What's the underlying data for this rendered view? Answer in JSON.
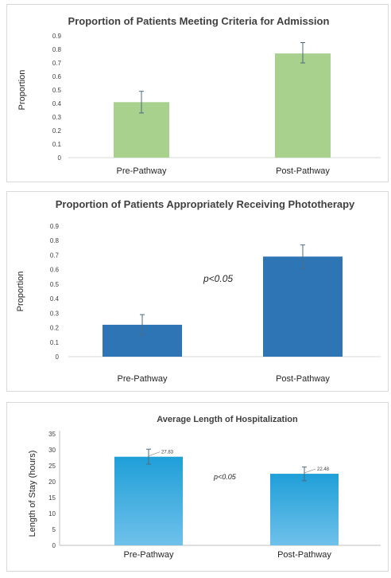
{
  "chart_data": [
    {
      "type": "bar",
      "title": "Proportion of Patients Meeting Criteria for Admission",
      "ylabel": "Proportion",
      "xlabel": "",
      "categories": [
        "Pre-Pathway",
        "Post-Pathway"
      ],
      "values": [
        0.41,
        0.77
      ],
      "error_low": [
        0.33,
        0.7
      ],
      "error_high": [
        0.49,
        0.85
      ],
      "ylim": [
        0,
        0.9
      ],
      "yticks": [
        "0",
        "0.1",
        "0.2",
        "0.3",
        "0.4",
        "0.5",
        "0.6",
        "0.7",
        "0.8",
        "0.9"
      ],
      "bar_color": "#a9d18e",
      "annotation": "",
      "grid": false
    },
    {
      "type": "bar",
      "title": "Proportion of Patients Appropriately Receiving Phototherapy",
      "ylabel": "Proportion",
      "xlabel": "",
      "categories": [
        "Pre-Pathway",
        "Post-Pathway"
      ],
      "values": [
        0.22,
        0.69
      ],
      "error_low": [
        0.15,
        0.61
      ],
      "error_high": [
        0.29,
        0.77
      ],
      "ylim": [
        0,
        0.9
      ],
      "yticks": [
        "0",
        "0.1",
        "0.2",
        "0.3",
        "0.4",
        "0.5",
        "0.6",
        "0.7",
        "0.8",
        "0.9"
      ],
      "bar_color": "#2e75b6",
      "annotation": "p<0.05",
      "grid": false
    },
    {
      "type": "bar",
      "title": "Average Length of Hospitalization",
      "ylabel": "Length of Stay (hours)",
      "xlabel": "",
      "categories": [
        "Pre-Pathway",
        "Post-Pathway"
      ],
      "values": [
        27.83,
        22.48
      ],
      "data_labels": [
        "27.83",
        "22.48"
      ],
      "error_low": [
        25.5,
        20.3
      ],
      "error_high": [
        30.2,
        24.6
      ],
      "ylim": [
        0,
        35
      ],
      "yticks": [
        "0",
        "5",
        "10",
        "15",
        "20",
        "25",
        "30",
        "35"
      ],
      "bar_color": "#1f9fd8",
      "bar_color_light": "#6fc1ea",
      "annotation": "p<0.05",
      "grid": false
    }
  ]
}
